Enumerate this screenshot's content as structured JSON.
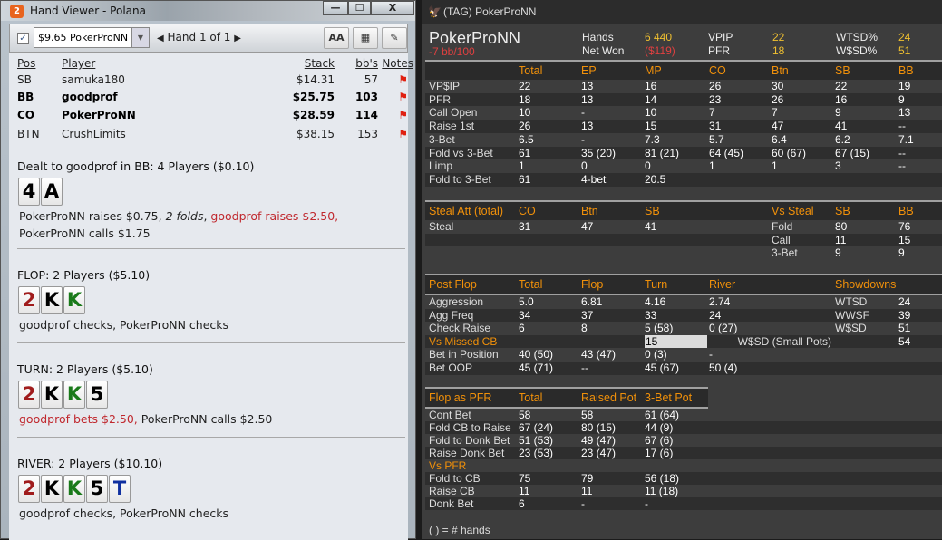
{
  "hand_viewer": {
    "title": "Hand Viewer - Polana",
    "app_badge": "2",
    "window_controls": {
      "minimize": "—",
      "maximize": "☐",
      "close": "X"
    },
    "toolbar": {
      "checked": true,
      "player_select": "$9.65 PokerProNN",
      "hand_nav": "Hand 1 of 1",
      "font_button": "AA",
      "grid_button": "▦",
      "edit_button": "✎"
    },
    "players": {
      "headers": [
        "Pos",
        "Player",
        "Stack",
        "bb's",
        "Notes"
      ],
      "rows": [
        {
          "pos": "SB",
          "player": "samuka180",
          "stack": "$14.31",
          "bbs": "57",
          "bold": false
        },
        {
          "pos": "BB",
          "player": "goodprof",
          "stack": "$25.75",
          "bbs": "103",
          "bold": true
        },
        {
          "pos": "CO",
          "player": "PokerProNN",
          "stack": "$28.59",
          "bbs": "114",
          "bold": true
        },
        {
          "pos": "BTN",
          "player": "CrushLimits",
          "stack": "$38.15",
          "bbs": "153",
          "bold": false
        }
      ]
    },
    "streets": [
      {
        "title": "Dealt to goodprof in BB: 4 Players ($0.10)",
        "cards": [
          {
            "r": "4",
            "c": "#000000"
          },
          {
            "r": "A",
            "c": "#000000"
          }
        ],
        "actions": [
          {
            "t": "PokerProNN raises $0.75, "
          },
          {
            "t": "2 folds",
            "i": true
          },
          {
            "t": ", "
          },
          {
            "t": "goodprof raises $2.50,",
            "red": true
          },
          {
            "t": " PokerProNN calls $1.75"
          }
        ]
      },
      {
        "title": "FLOP: 2 Players ($5.10)",
        "cards": [
          {
            "r": "2",
            "c": "#a01c1c"
          },
          {
            "r": "K",
            "c": "#000000"
          },
          {
            "r": "K",
            "c": "#1a7a1a"
          }
        ],
        "actions": [
          {
            "t": "goodprof checks, PokerProNN checks"
          }
        ]
      },
      {
        "title": "TURN: 2 Players ($5.10)",
        "cards": [
          {
            "r": "2",
            "c": "#a01c1c"
          },
          {
            "r": "K",
            "c": "#000000"
          },
          {
            "r": "K",
            "c": "#1a7a1a"
          },
          {
            "r": "5",
            "c": "#000000"
          }
        ],
        "actions": [
          {
            "t": "goodprof bets $2.50,",
            "red": true
          },
          {
            "t": " PokerProNN calls $2.50"
          }
        ]
      },
      {
        "title": "RIVER: 2 Players ($10.10)",
        "cards": [
          {
            "r": "2",
            "c": "#a01c1c"
          },
          {
            "r": "K",
            "c": "#000000"
          },
          {
            "r": "K",
            "c": "#1a7a1a"
          },
          {
            "r": "5",
            "c": "#000000"
          },
          {
            "r": "T",
            "c": "#1030a0"
          }
        ],
        "actions": [
          {
            "t": "goodprof checks, PokerProNN checks"
          }
        ]
      }
    ]
  },
  "hud": {
    "title": "(TAG) PokerProNN",
    "icon": "eagle-icon",
    "player": "PokerProNN",
    "winrate": "-7 bb/100",
    "summary": [
      {
        "label": "Hands",
        "value": "6 440"
      },
      {
        "label": "Net Won",
        "value": "($119)",
        "neg": true
      },
      {
        "label": "VPIP",
        "value": "22"
      },
      {
        "label": "PFR",
        "value": "18"
      },
      {
        "label": "WTSD%",
        "value": "24"
      },
      {
        "label": "W$SD%",
        "value": "51"
      }
    ],
    "preflop": {
      "headers": [
        "",
        "Total",
        "EP",
        "MP",
        "CO",
        "Btn",
        "SB",
        "BB"
      ],
      "rows": [
        [
          "VP$IP",
          "22",
          "13",
          "16",
          "26",
          "30",
          "22",
          "19"
        ],
        [
          "PFR",
          "18",
          "13",
          "14",
          "23",
          "26",
          "16",
          "9"
        ],
        [
          "Call Open",
          "10",
          "-",
          "10",
          "7",
          "7",
          "9",
          "13"
        ],
        [
          "Raise 1st",
          "26",
          "13",
          "15",
          "31",
          "47",
          "41",
          "--"
        ],
        [
          "3-Bet",
          "6.5",
          "-",
          "7.3",
          "5.7",
          "6.4",
          "6.2",
          "7.1"
        ],
        [
          "Fold vs 3-Bet",
          "61",
          "35 (20)",
          "81 (21)",
          "64 (45)",
          "60 (67)",
          "67 (15)",
          "--"
        ],
        [
          "Limp",
          "1",
          "0",
          "0",
          "1",
          "1",
          "3",
          "--"
        ],
        [
          "Fold to 3-Bet",
          "61",
          "4-bet",
          "20.5",
          "",
          "",
          "",
          ""
        ]
      ]
    },
    "steal": {
      "headers": [
        "Steal Att (total)",
        "CO",
        "Btn",
        "SB",
        "",
        "Vs Steal",
        "SB",
        "BB"
      ],
      "rows": [
        [
          "Steal",
          "31",
          "47",
          "41",
          "",
          "Fold",
          "80",
          "76"
        ],
        [
          "",
          "",
          "",
          "",
          "",
          "Call",
          "11",
          "15"
        ],
        [
          "",
          "",
          "",
          "",
          "",
          "3-Bet",
          "9",
          "9"
        ]
      ]
    },
    "postflop": {
      "headers": [
        "Post Flop",
        "Total",
        "Flop",
        "Turn",
        "River",
        "",
        "Showdowns",
        ""
      ],
      "rows": [
        [
          "Aggression",
          "5.0",
          "6.81",
          "4.16",
          "2.74",
          "",
          "WTSD",
          "24"
        ],
        [
          "Agg Freq",
          "34",
          "37",
          "33",
          "24",
          "",
          "WWSF",
          "39"
        ],
        [
          "Check Raise",
          "6",
          "8",
          "5 (58)",
          "0 (27)",
          "",
          "W$SD",
          "51"
        ],
        [
          "Vs Missed CB",
          "",
          "",
          "15",
          "",
          "",
          "W$SD (Small Pots)",
          "54"
        ],
        [
          "Bet in Position",
          "40 (50)",
          "43 (47)",
          "0 (3)",
          "-",
          "",
          "",
          ""
        ],
        [
          "Bet OOP",
          "45 (71)",
          "--",
          "45 (67)",
          "50 (4)",
          "",
          "",
          ""
        ]
      ]
    },
    "flop_pfr": {
      "headers": [
        "Flop as PFR",
        "Total",
        "Raised Pot",
        "3-Bet Pot"
      ],
      "rows": [
        [
          "Cont Bet",
          "58",
          "58",
          "61 (64)"
        ],
        [
          "Fold CB to Raise",
          "67 (24)",
          "80 (15)",
          "44 (9)"
        ],
        [
          "Fold to Donk Bet",
          "51 (53)",
          "49 (47)",
          "67 (6)"
        ],
        [
          "Raise Donk Bet",
          "23 (53)",
          "23 (47)",
          "17 (6)"
        ],
        [
          "Vs PFR",
          "",
          "",
          ""
        ],
        [
          "Fold to CB",
          "75",
          "79",
          "56 (18)"
        ],
        [
          "Raise CB",
          "11",
          "11",
          "11 (18)"
        ],
        [
          "Donk Bet",
          "6",
          "-",
          "-"
        ]
      ]
    },
    "footnote": "( ) = # hands",
    "colors": {
      "accent": "#f0900a",
      "stat_value": "#f0c030",
      "negative": "#e04040"
    }
  }
}
